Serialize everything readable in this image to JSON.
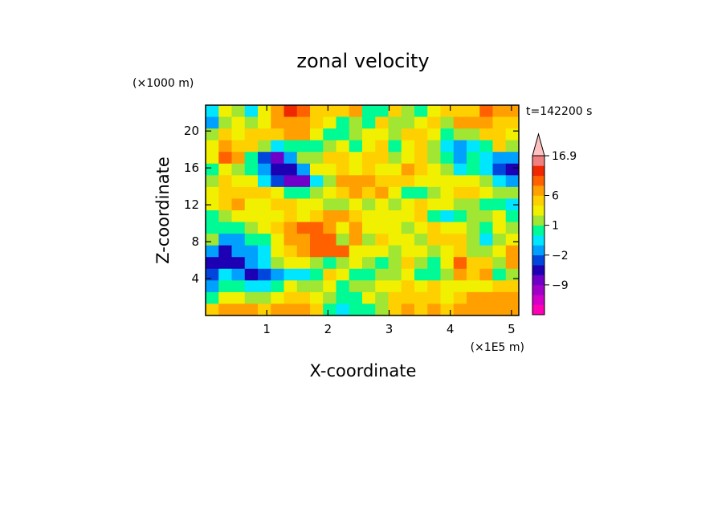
{
  "chart_data": {
    "type": "heatmap",
    "title": "zonal velocity",
    "xlabel": "X-coordinate",
    "ylabel": "Z-coordinate",
    "x_unit": "(×1E5 m)",
    "y_unit": "(×1000 m)",
    "time_label": "t=142200 s",
    "x_ticks": [
      "1",
      "2",
      "3",
      "4",
      "5"
    ],
    "y_ticks": [
      "4",
      "8",
      "12",
      "16",
      "20"
    ],
    "xlim": [
      0,
      5.12
    ],
    "ylim": [
      0,
      22.8
    ],
    "colorbar": {
      "levels": [
        -15,
        -12,
        -9,
        -6,
        -4,
        -2,
        -1,
        0,
        1,
        2,
        4,
        6,
        8,
        10,
        12,
        16.9
      ],
      "colors": [
        "#ff00b4",
        "#d200c8",
        "#a000c8",
        "#6e00c8",
        "#1e00b4",
        "#0046dc",
        "#00a0ff",
        "#00e6ff",
        "#00fa96",
        "#a0e632",
        "#f0f000",
        "#ffd000",
        "#ffa000",
        "#ff6000",
        "#f02800",
        "#f08080",
        "#ffc0c0"
      ],
      "tick_labels": [
        "16.9",
        "6",
        "1",
        "-2",
        "-9"
      ]
    },
    "values": [
      [
        7,
        10,
        9,
        7,
        10,
        12,
        14,
        13,
        11,
        11,
        11,
        12,
        8,
        8,
        11,
        9,
        8,
        10,
        11,
        11,
        11,
        13,
        12,
        12
      ],
      [
        6,
        9,
        10,
        9,
        10,
        12,
        12,
        12,
        11,
        10,
        8,
        9,
        8,
        11,
        9,
        9,
        10,
        11,
        9,
        12,
        12,
        12,
        11,
        11
      ],
      [
        9,
        11,
        10,
        11,
        11,
        11,
        12,
        12,
        10,
        8,
        8,
        9,
        10,
        10,
        9,
        11,
        11,
        10,
        8,
        9,
        9,
        11,
        11,
        10
      ],
      [
        10,
        12,
        11,
        11,
        9,
        7,
        8,
        8,
        8,
        9,
        10,
        8,
        10,
        11,
        8,
        10,
        11,
        9,
        7,
        6,
        7,
        8,
        11,
        9
      ],
      [
        10,
        13,
        12,
        8,
        5,
        3,
        6,
        9,
        9,
        11,
        11,
        10,
        11,
        11,
        9,
        10,
        11,
        9,
        8,
        6,
        8,
        7,
        6,
        6
      ],
      [
        8,
        10,
        9,
        8,
        6,
        4,
        4,
        6,
        10,
        10,
        11,
        10,
        11,
        10,
        10,
        12,
        11,
        10,
        9,
        7,
        8,
        7,
        5,
        4
      ],
      [
        9,
        11,
        10,
        10,
        7,
        5,
        3,
        3,
        7,
        9,
        12,
        12,
        12,
        11,
        11,
        11,
        10,
        10,
        10,
        10,
        10,
        9,
        7,
        6
      ],
      [
        10,
        11,
        11,
        11,
        11,
        10,
        8,
        8,
        9,
        10,
        11,
        12,
        11,
        12,
        10,
        8,
        8,
        9,
        10,
        11,
        11,
        10,
        9,
        9
      ],
      [
        10,
        11,
        12,
        10,
        10,
        11,
        11,
        10,
        10,
        9,
        9,
        10,
        9,
        10,
        9,
        10,
        11,
        10,
        10,
        9,
        9,
        8,
        8,
        7
      ],
      [
        8,
        9,
        10,
        10,
        10,
        10,
        11,
        10,
        11,
        12,
        12,
        11,
        10,
        10,
        10,
        10,
        11,
        8,
        7,
        8,
        9,
        9,
        10,
        8
      ],
      [
        8,
        8,
        8,
        9,
        10,
        11,
        12,
        13,
        13,
        12,
        10,
        12,
        10,
        10,
        10,
        9,
        10,
        11,
        10,
        10,
        9,
        8,
        10,
        9
      ],
      [
        9,
        6,
        6,
        8,
        8,
        10,
        12,
        12,
        13,
        13,
        9,
        12,
        9,
        11,
        10,
        10,
        9,
        11,
        11,
        11,
        9,
        7,
        9,
        10
      ],
      [
        6,
        4,
        6,
        6,
        7,
        10,
        11,
        12,
        13,
        13,
        13,
        10,
        10,
        10,
        9,
        10,
        10,
        9,
        10,
        11,
        9,
        9,
        10,
        12
      ],
      [
        4,
        4,
        4,
        6,
        7,
        9,
        10,
        10,
        9,
        8,
        9,
        10,
        9,
        8,
        9,
        11,
        9,
        8,
        10,
        13,
        11,
        11,
        9,
        12
      ],
      [
        5,
        7,
        6,
        4,
        5,
        6,
        7,
        7,
        8,
        11,
        10,
        8,
        8,
        9,
        9,
        10,
        8,
        8,
        9,
        12,
        11,
        12,
        8,
        9
      ],
      [
        6,
        8,
        8,
        7,
        7,
        8,
        10,
        9,
        9,
        10,
        8,
        9,
        9,
        10,
        10,
        11,
        10,
        11,
        10,
        10,
        10,
        10,
        11,
        11
      ],
      [
        8,
        10,
        10,
        9,
        9,
        10,
        11,
        11,
        10,
        9,
        8,
        8,
        10,
        9,
        11,
        11,
        11,
        11,
        10,
        11,
        12,
        12,
        12,
        12
      ],
      [
        11,
        12,
        12,
        12,
        11,
        12,
        12,
        12,
        11,
        8,
        7,
        8,
        8,
        9,
        11,
        12,
        11,
        12,
        11,
        12,
        12,
        12,
        12,
        12
      ]
    ]
  }
}
